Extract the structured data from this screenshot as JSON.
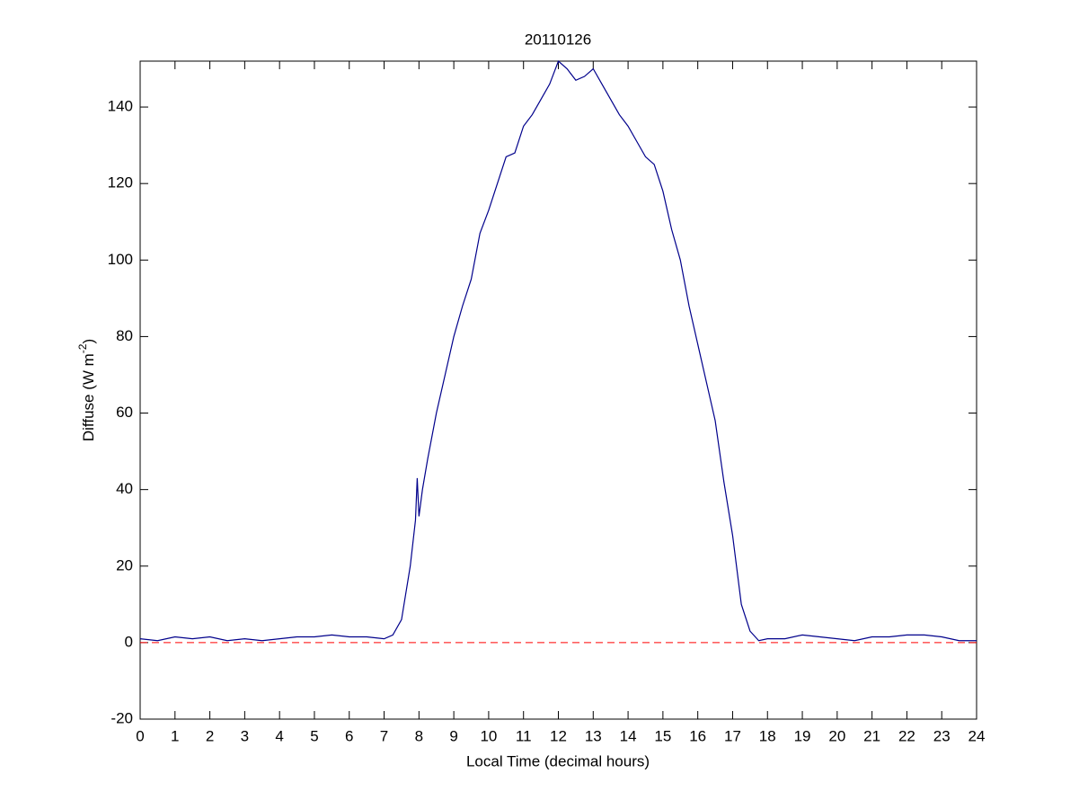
{
  "chart_data": {
    "type": "line",
    "title": "20110126",
    "xlabel": "Local Time (decimal hours)",
    "ylabel": {
      "text": "Diffuse (W m",
      "superscript": "-2",
      "suffix": ")"
    },
    "x": [
      0,
      0.5,
      1,
      1.5,
      2,
      2.5,
      3,
      3.5,
      4,
      4.5,
      5,
      5.5,
      6,
      6.5,
      7,
      7.25,
      7.5,
      7.75,
      7.9,
      7.95,
      8,
      8.1,
      8.25,
      8.5,
      8.75,
      9,
      9.25,
      9.5,
      9.75,
      10,
      10.25,
      10.5,
      10.75,
      11,
      11.25,
      11.5,
      11.75,
      12,
      12.25,
      12.5,
      12.75,
      13,
      13.25,
      13.5,
      13.75,
      14,
      14.25,
      14.5,
      14.75,
      15,
      15.25,
      15.5,
      15.75,
      16,
      16.25,
      16.5,
      16.75,
      17,
      17.25,
      17.5,
      17.75,
      18,
      18.5,
      19,
      19.5,
      20,
      20.5,
      21,
      21.5,
      22,
      22.5,
      23,
      23.5,
      24
    ],
    "series": [
      {
        "color": "#00008b",
        "values": [
          1,
          0.5,
          1.5,
          1,
          1.5,
          0.5,
          1,
          0.5,
          1,
          1.5,
          1.5,
          2,
          1.5,
          1.5,
          1,
          2,
          6,
          20,
          32,
          43,
          33,
          40,
          48,
          60,
          70,
          80,
          88,
          95,
          107,
          113,
          120,
          127,
          128,
          135,
          138,
          142,
          146,
          152,
          150,
          147,
          148,
          150,
          146,
          142,
          138,
          135,
          131,
          127,
          125,
          118,
          108,
          100,
          88,
          78,
          68,
          58,
          42,
          28,
          10,
          3,
          0.5,
          1,
          1,
          2,
          1.5,
          1,
          0.5,
          1.5,
          1.5,
          2,
          2,
          1.5,
          0.5,
          0.5
        ]
      }
    ],
    "hlines": [
      {
        "value": 0,
        "color": "#ff0000",
        "style": "dashed"
      }
    ],
    "xlim": [
      0,
      24
    ],
    "xticks": [
      0,
      1,
      2,
      3,
      4,
      5,
      6,
      7,
      8,
      9,
      10,
      11,
      12,
      13,
      14,
      15,
      16,
      17,
      18,
      19,
      20,
      21,
      22,
      23,
      24
    ],
    "ylim": [
      -20,
      152
    ],
    "yticks": [
      -20,
      0,
      20,
      40,
      60,
      80,
      100,
      120,
      140
    ],
    "grid": false
  }
}
